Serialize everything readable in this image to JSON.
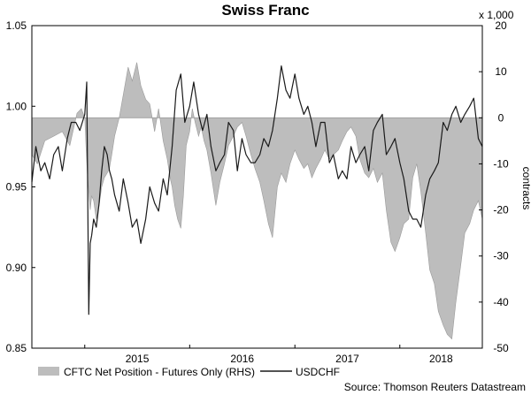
{
  "chart_data": {
    "type": "area",
    "title": "Swiss Franc",
    "left_axis": {
      "ylim": [
        0.85,
        1.05
      ],
      "ticks": [
        "0.85",
        "0.90",
        "0.95",
        "1.00",
        "1.05"
      ]
    },
    "right_axis": {
      "ylim": [
        -50,
        20
      ],
      "ticks": [
        "-50",
        "-40",
        "-30",
        "-20",
        "-10",
        "0",
        "10",
        "20"
      ],
      "multiplier_label": "x 1,000",
      "label": "contracts"
    },
    "x_tick_labels": [
      "2015",
      "2016",
      "2017",
      "2018"
    ],
    "x_range": [
      "2014-07-01",
      "2018-10-15"
    ],
    "grid": false,
    "legend_position": "bottom",
    "source": "Source: Thomson Reuters Datastream",
    "series": [
      {
        "name": "CFTC Net Position - Futures Only (RHS)",
        "type": "area",
        "axis": "right",
        "color": "#bdbdbd",
        "x": [
          "2014-07-01",
          "2014-07-20",
          "2014-08-15",
          "2014-09-15",
          "2014-10-15",
          "2014-11-10",
          "2014-12-05",
          "2014-12-20",
          "2015-01-01",
          "2015-01-05",
          "2015-01-10",
          "2015-01-15",
          "2015-01-20",
          "2015-01-25",
          "2015-02-01",
          "2015-02-10",
          "2015-02-20",
          "2015-03-01",
          "2015-03-10",
          "2015-03-20",
          "2015-03-28",
          "2015-04-05",
          "2015-04-15",
          "2015-05-01",
          "2015-05-15",
          "2015-06-01",
          "2015-06-15",
          "2015-07-01",
          "2015-07-15",
          "2015-08-01",
          "2015-08-15",
          "2015-09-01",
          "2015-09-15",
          "2015-10-01",
          "2015-10-15",
          "2015-10-25",
          "2015-11-01",
          "2015-11-10",
          "2015-11-20",
          "2015-12-01",
          "2015-12-10",
          "2015-12-20",
          "2016-01-01",
          "2016-01-10",
          "2016-01-20",
          "2016-02-01",
          "2016-02-10",
          "2016-02-20",
          "2016-03-01",
          "2016-03-15",
          "2016-04-01",
          "2016-04-15",
          "2016-05-01",
          "2016-05-15",
          "2016-06-01",
          "2016-06-15",
          "2016-07-01",
          "2016-07-15",
          "2016-08-01",
          "2016-08-15",
          "2016-09-01",
          "2016-09-15",
          "2016-10-01",
          "2016-10-15",
          "2016-11-01",
          "2016-11-15",
          "2016-12-01",
          "2016-12-15",
          "2017-01-01",
          "2017-01-15",
          "2017-02-01",
          "2017-02-15",
          "2017-03-01",
          "2017-03-15",
          "2017-04-01",
          "2017-04-15",
          "2017-05-01",
          "2017-05-15",
          "2017-06-01",
          "2017-06-15",
          "2017-07-01",
          "2017-07-15",
          "2017-08-01",
          "2017-08-15",
          "2017-09-01",
          "2017-09-15",
          "2017-10-01",
          "2017-10-15",
          "2017-11-01",
          "2017-11-15",
          "2017-12-01",
          "2017-12-15",
          "2018-01-01",
          "2018-01-15",
          "2018-02-01",
          "2018-02-15",
          "2018-03-01",
          "2018-03-15",
          "2018-04-01",
          "2018-04-15",
          "2018-05-01",
          "2018-05-15",
          "2018-06-01",
          "2018-06-15",
          "2018-07-01",
          "2018-07-15",
          "2018-08-01",
          "2018-08-15",
          "2018-09-01",
          "2018-09-15",
          "2018-10-01",
          "2018-10-15"
        ],
        "values": [
          -8,
          -10,
          -5,
          -4,
          -3,
          -6,
          1,
          2,
          0,
          -6,
          -12,
          -16,
          -20,
          -17,
          -18,
          -22,
          -19,
          -15,
          -13,
          -12,
          -11,
          -8,
          -4,
          0,
          5,
          11,
          8,
          12,
          7,
          4,
          3,
          -3,
          2,
          -5,
          -9,
          -13,
          -15,
          -19,
          -22,
          -24,
          -17,
          -6,
          -3,
          2,
          -1,
          -4,
          -2,
          -5,
          -7,
          -12,
          -19,
          -14,
          -10,
          -6,
          -4,
          -2,
          -1,
          -4,
          -8,
          -11,
          -14,
          -18,
          -23,
          -26,
          -15,
          -12,
          -14,
          -10,
          -7,
          -9,
          -11,
          -10,
          -13,
          -11,
          -9,
          -7,
          -9,
          -8,
          -7,
          -5,
          -3,
          -2,
          -4,
          -9,
          -12,
          -13,
          -11,
          -14,
          -12,
          -20,
          -27,
          -29,
          -26,
          -23,
          -22,
          -13,
          -10,
          -16,
          -25,
          -33,
          -36,
          -42,
          -45,
          -47,
          -48,
          -40,
          -32,
          -25,
          -23,
          -20,
          -18,
          -22
        ]
      },
      {
        "name": "USDCHF",
        "type": "line",
        "axis": "left",
        "color": "#1a1a1a",
        "x": [
          "2014-07-01",
          "2014-07-15",
          "2014-08-01",
          "2014-08-15",
          "2014-09-01",
          "2014-09-15",
          "2014-10-01",
          "2014-10-15",
          "2014-11-01",
          "2014-11-15",
          "2014-12-01",
          "2014-12-15",
          "2015-01-01",
          "2015-01-08",
          "2015-01-15",
          "2015-01-20",
          "2015-01-25",
          "2015-02-01",
          "2015-02-10",
          "2015-02-20",
          "2015-03-01",
          "2015-03-10",
          "2015-03-20",
          "2015-03-28",
          "2015-04-05",
          "2015-04-15",
          "2015-05-01",
          "2015-05-15",
          "2015-06-01",
          "2015-06-15",
          "2015-07-01",
          "2015-07-15",
          "2015-08-01",
          "2015-08-15",
          "2015-09-01",
          "2015-09-15",
          "2015-10-01",
          "2015-10-15",
          "2015-11-01",
          "2015-11-15",
          "2015-12-01",
          "2015-12-15",
          "2016-01-01",
          "2016-01-15",
          "2016-02-01",
          "2016-02-15",
          "2016-03-01",
          "2016-03-15",
          "2016-04-01",
          "2016-04-15",
          "2016-05-01",
          "2016-05-15",
          "2016-06-01",
          "2016-06-15",
          "2016-07-01",
          "2016-07-15",
          "2016-08-01",
          "2016-08-15",
          "2016-09-01",
          "2016-09-15",
          "2016-10-01",
          "2016-10-15",
          "2016-11-01",
          "2016-11-15",
          "2016-12-01",
          "2016-12-15",
          "2017-01-01",
          "2017-01-15",
          "2017-02-01",
          "2017-02-15",
          "2017-03-01",
          "2017-03-15",
          "2017-04-01",
          "2017-04-15",
          "2017-05-01",
          "2017-05-15",
          "2017-06-01",
          "2017-06-15",
          "2017-07-01",
          "2017-07-15",
          "2017-08-01",
          "2017-08-15",
          "2017-09-01",
          "2017-09-15",
          "2017-10-01",
          "2017-10-15",
          "2017-11-01",
          "2017-11-15",
          "2017-12-01",
          "2017-12-15",
          "2018-01-01",
          "2018-01-15",
          "2018-02-01",
          "2018-02-15",
          "2018-03-01",
          "2018-03-15",
          "2018-04-01",
          "2018-04-15",
          "2018-05-01",
          "2018-05-15",
          "2018-06-01",
          "2018-06-15",
          "2018-07-01",
          "2018-07-15",
          "2018-08-01",
          "2018-08-15",
          "2018-09-01",
          "2018-09-15",
          "2018-10-01",
          "2018-10-15"
        ],
        "values": [
          0.953,
          0.975,
          0.96,
          0.965,
          0.955,
          0.97,
          0.975,
          0.96,
          0.98,
          0.99,
          0.99,
          0.985,
          0.995,
          1.015,
          0.871,
          0.915,
          0.92,
          0.93,
          0.925,
          0.94,
          0.96,
          0.975,
          0.97,
          0.96,
          0.955,
          0.945,
          0.935,
          0.955,
          0.94,
          0.925,
          0.93,
          0.915,
          0.93,
          0.95,
          0.94,
          0.935,
          0.955,
          0.945,
          0.975,
          1.01,
          1.02,
          0.99,
          1.0,
          1.015,
          0.995,
          0.985,
          0.995,
          0.975,
          0.96,
          0.965,
          0.97,
          0.99,
          0.985,
          0.96,
          0.98,
          0.97,
          0.965,
          0.965,
          0.97,
          0.98,
          0.975,
          0.985,
          1.005,
          1.025,
          1.01,
          1.005,
          1.02,
          1.005,
          0.995,
          1.0,
          0.99,
          0.975,
          0.99,
          0.99,
          0.965,
          0.97,
          0.955,
          0.96,
          0.955,
          0.975,
          0.965,
          0.97,
          0.975,
          0.96,
          0.985,
          0.99,
          0.995,
          0.97,
          0.975,
          0.98,
          0.965,
          0.955,
          0.935,
          0.93,
          0.93,
          0.925,
          0.945,
          0.955,
          0.96,
          0.965,
          0.99,
          0.985,
          0.995,
          1.0,
          0.99,
          0.995,
          1.0,
          1.005,
          0.98,
          0.975
        ]
      }
    ]
  }
}
